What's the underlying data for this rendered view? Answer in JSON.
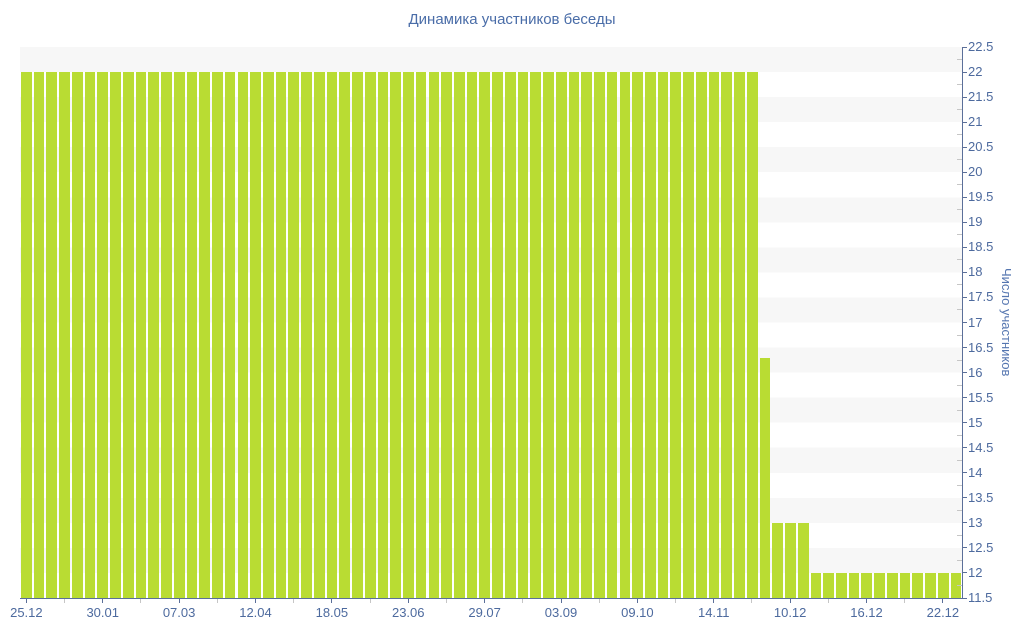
{
  "chart_data": {
    "type": "bar",
    "title": "Динамика участников беседы",
    "xlabel": "",
    "ylabel": "Число участников",
    "ylim": [
      11.5,
      22.5
    ],
    "y_tick_step": 0.5,
    "y_minor_tick_step": 0.25,
    "y_tick_labels": [
      "22.5",
      "22",
      "21.5",
      "21",
      "20.5",
      "20",
      "19.5",
      "19",
      "18.5",
      "18",
      "17.5",
      "17",
      "16.5",
      "16",
      "15.5",
      "15",
      "14.5",
      "14",
      "13.5",
      "13",
      "12.5",
      "12",
      "11.5"
    ],
    "grid": "horizontal zebra bands, gray/white alternating every 0.5 units",
    "legend": false,
    "bar_color": "#b9dc33",
    "x_labels": [
      "25.12",
      "30.01",
      "07.03",
      "12.04",
      "18.05",
      "23.06",
      "29.07",
      "03.09",
      "09.10",
      "14.11",
      "10.12",
      "16.12",
      "22.12"
    ],
    "x_label_every_n_bars": 6,
    "x_label_first_bar_index": 0,
    "values": [
      22,
      22,
      22,
      22,
      22,
      22,
      22,
      22,
      22,
      22,
      22,
      22,
      22,
      22,
      22,
      22,
      22,
      22,
      22,
      22,
      22,
      22,
      22,
      22,
      22,
      22,
      22,
      22,
      22,
      22,
      22,
      22,
      22,
      22,
      22,
      22,
      22,
      22,
      22,
      22,
      22,
      22,
      22,
      22,
      22,
      22,
      22,
      22,
      22,
      22,
      22,
      22,
      22,
      22,
      22,
      22,
      22,
      22,
      16.3,
      13,
      13,
      13,
      12,
      12,
      12,
      12,
      12,
      12,
      12,
      12,
      12,
      12,
      12,
      12
    ]
  },
  "colors": {
    "bar": "#b9dc33",
    "band_gray": "#f7f7f7",
    "axis": "#5b6f99",
    "tick_label": "#4d6a9e",
    "title": "#4a6da8",
    "minor_tick": "#c6c6c6"
  }
}
